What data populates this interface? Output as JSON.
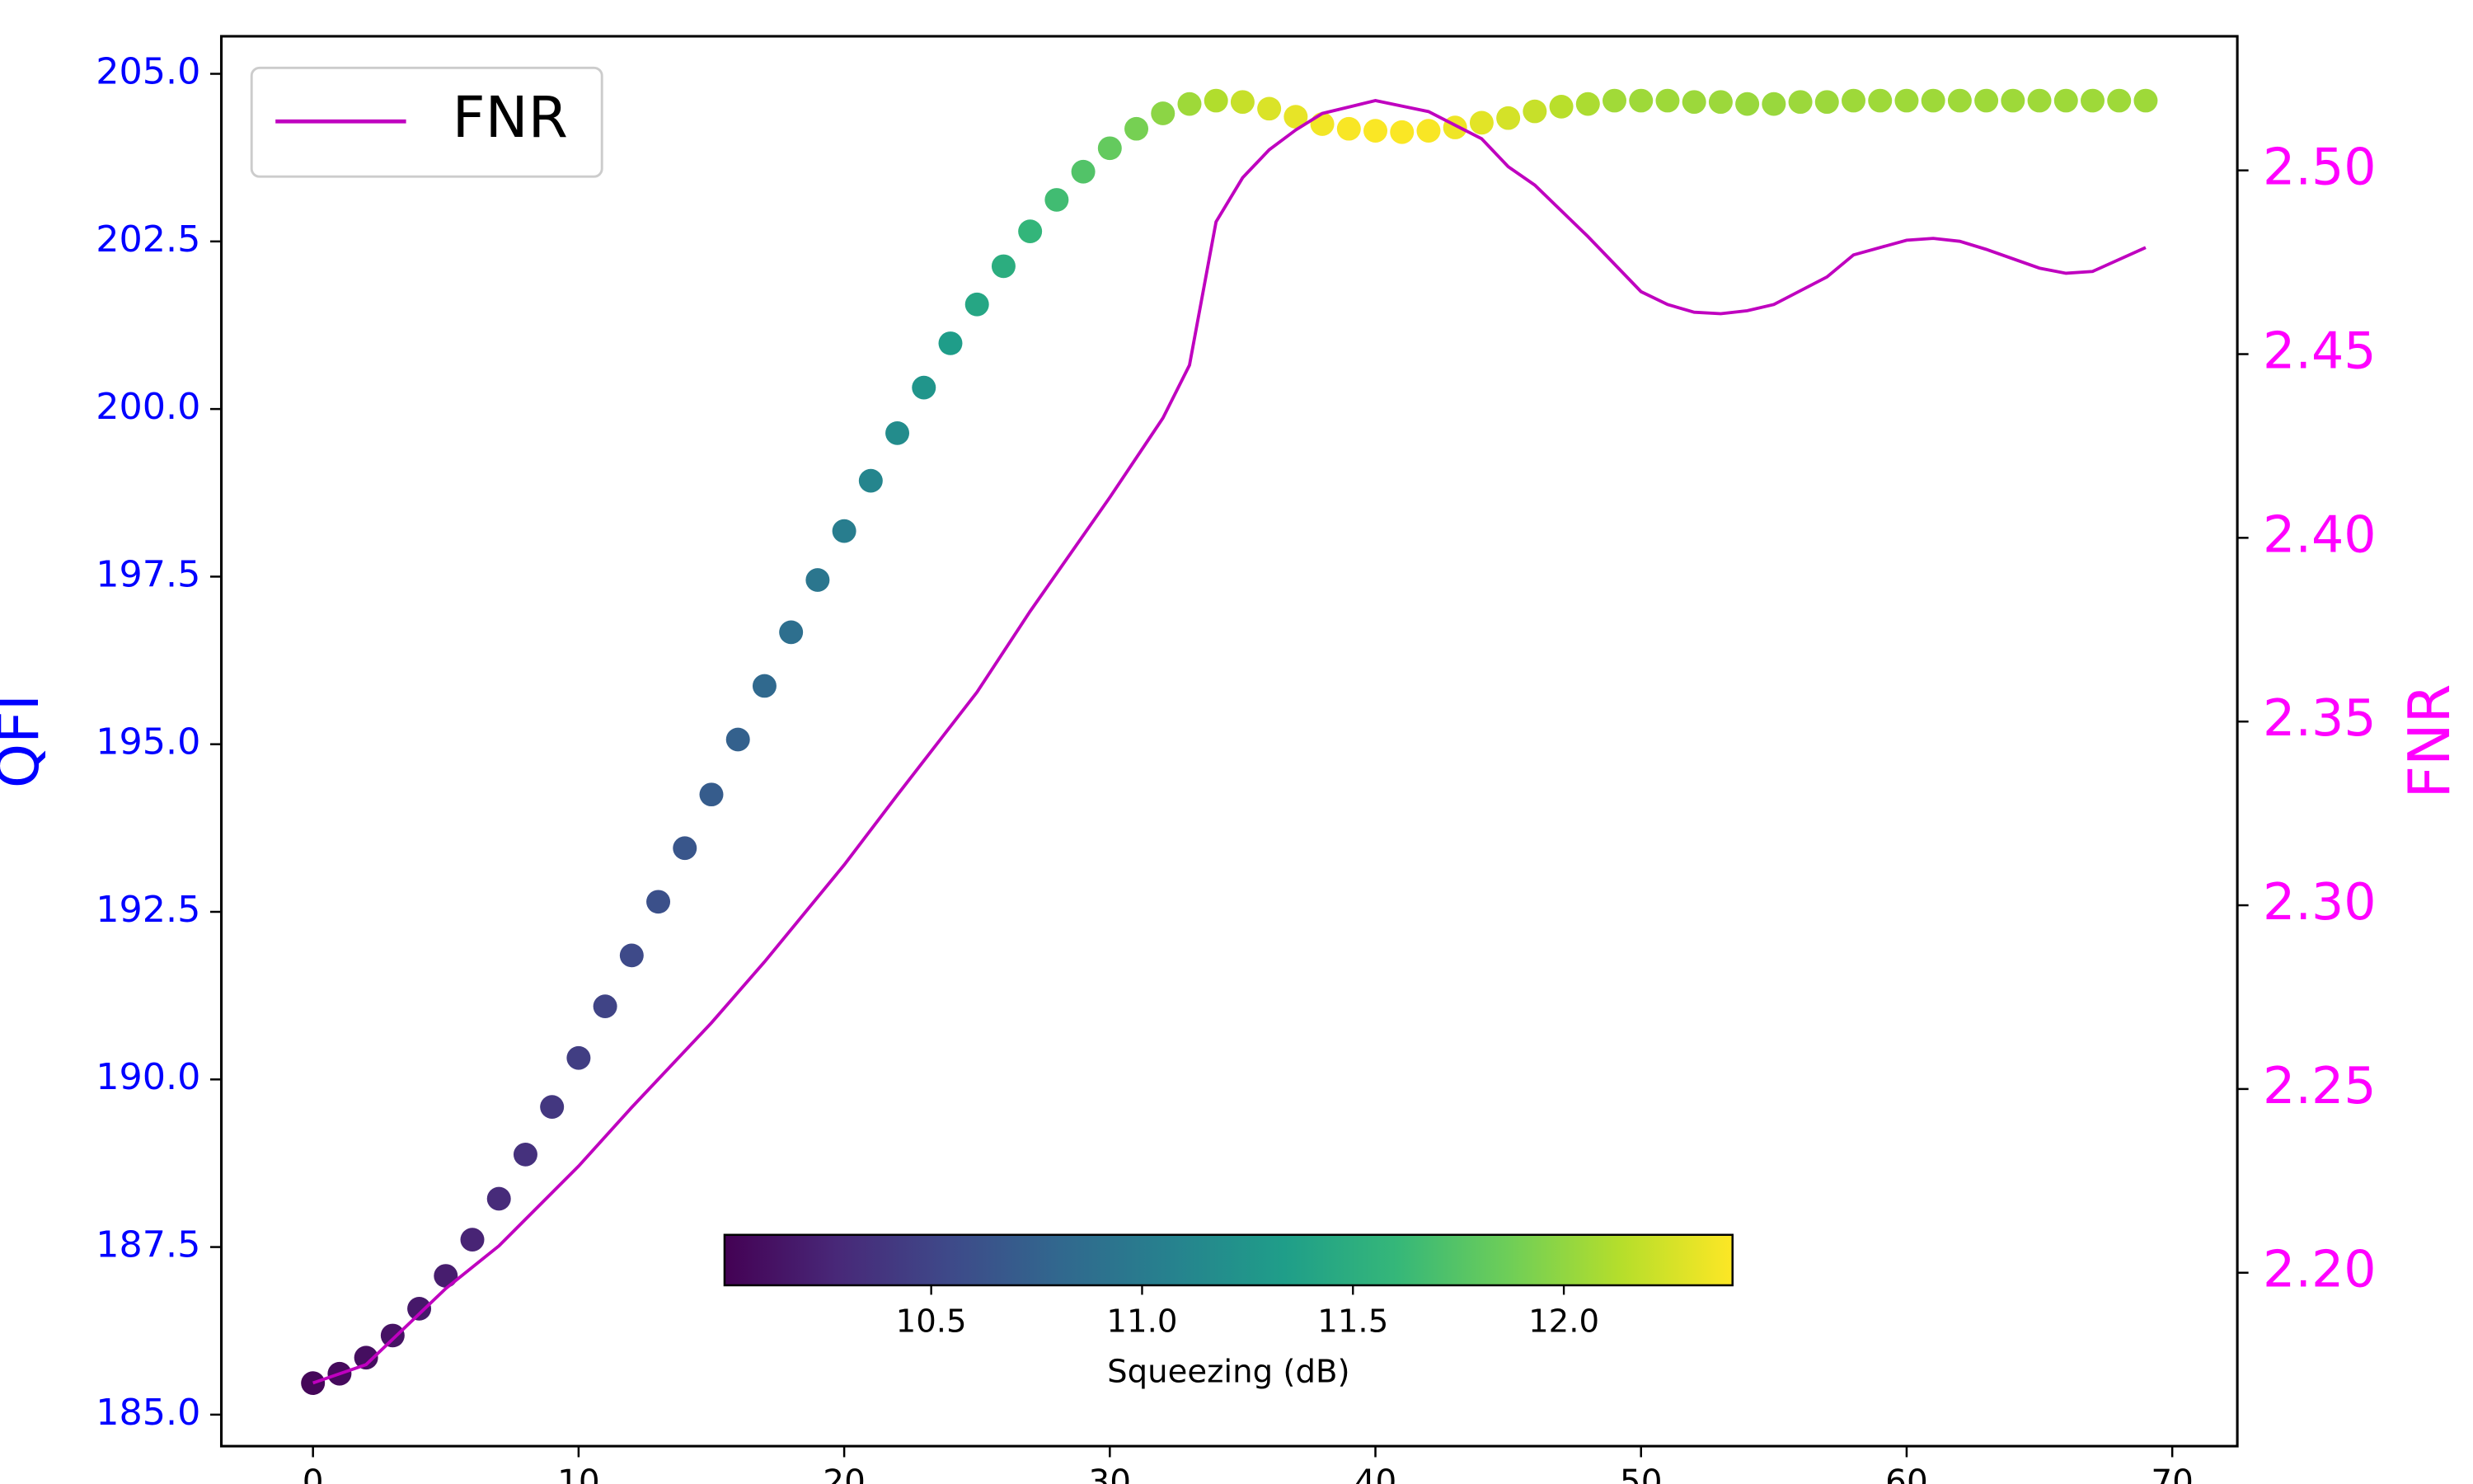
{
  "chart_data": {
    "type": "scatter",
    "xlim": [
      -3.45,
      72.45
    ],
    "xticks": [
      0,
      10,
      20,
      30,
      40,
      50,
      60,
      70
    ],
    "ylabel": "QFI",
    "y_color": "#0000ff",
    "ylim": [
      184.53,
      205.56
    ],
    "yticks": [
      {
        "value": 185,
        "label": "185.0"
      },
      {
        "value": 187.5,
        "label": "187.5"
      },
      {
        "value": 190,
        "label": "190.0"
      },
      {
        "value": 192.5,
        "label": "192.5"
      },
      {
        "value": 195,
        "label": "195.0"
      },
      {
        "value": 197.5,
        "label": "197.5"
      },
      {
        "value": 200,
        "label": "200.0"
      },
      {
        "value": 202.5,
        "label": "202.5"
      },
      {
        "value": 205,
        "label": "205.0"
      }
    ],
    "y2label": "FNR",
    "y2_color": "#ff00ff",
    "y2lim": [
      2.1528,
      2.5365
    ],
    "y2ticks": [
      {
        "value": 2.2,
        "label": "2.20"
      },
      {
        "value": 2.25,
        "label": "2.25"
      },
      {
        "value": 2.3,
        "label": "2.30"
      },
      {
        "value": 2.35,
        "label": "2.35"
      },
      {
        "value": 2.4,
        "label": "2.40"
      },
      {
        "value": 2.45,
        "label": "2.45"
      },
      {
        "value": 2.5,
        "label": "2.50"
      }
    ],
    "colorbar": {
      "label": "Squeezing (dB)",
      "colormap": "viridis",
      "clim": [
        10.01,
        12.4
      ],
      "ticks": [
        {
          "value": 10.5,
          "label": "10.5"
        },
        {
          "value": 11,
          "label": "11.0"
        },
        {
          "value": 11.5,
          "label": "11.5"
        },
        {
          "value": 12,
          "label": "12.0"
        }
      ]
    },
    "legend": "upper left",
    "series": [
      {
        "axis": "y",
        "x": [
          0,
          1,
          2,
          3,
          4,
          5,
          6,
          7,
          8,
          9,
          10,
          11,
          12,
          13,
          14,
          15,
          16,
          17,
          18,
          19,
          20,
          21,
          22,
          23,
          24,
          25,
          26,
          27,
          28,
          29,
          30,
          31,
          32,
          33,
          34,
          35,
          36,
          37,
          38,
          39,
          40,
          41,
          42,
          43,
          44,
          45,
          46,
          47,
          48,
          49,
          50,
          51,
          52,
          53,
          54,
          55,
          56,
          57,
          58,
          59,
          60,
          61,
          62,
          63,
          64,
          65,
          66,
          67,
          68,
          69
        ],
        "values": [
          185.47,
          185.61,
          185.85,
          186.18,
          186.58,
          187.07,
          187.61,
          188.22,
          188.88,
          189.59,
          190.32,
          191.09,
          191.85,
          192.65,
          193.45,
          194.25,
          195.07,
          195.87,
          196.67,
          197.45,
          198.18,
          198.93,
          199.64,
          200.32,
          200.98,
          201.56,
          202.13,
          202.65,
          203.12,
          203.54,
          203.89,
          204.18,
          204.41,
          204.55,
          204.6,
          204.58,
          204.48,
          204.36,
          204.25,
          204.18,
          204.15,
          204.13,
          204.15,
          204.2,
          204.27,
          204.34,
          204.44,
          204.51,
          204.55,
          204.6,
          204.6,
          204.6,
          204.58,
          204.58,
          204.55,
          204.55,
          204.58,
          204.58,
          204.6,
          204.6,
          204.6,
          204.6,
          204.6,
          204.6,
          204.6,
          204.6,
          204.6,
          204.6,
          204.6,
          204.6
        ],
        "c": [
          10.05,
          10.07,
          10.1,
          10.13,
          10.17,
          10.2,
          10.25,
          10.3,
          10.35,
          10.4,
          10.45,
          10.5,
          10.55,
          10.6,
          10.65,
          10.7,
          10.75,
          10.82,
          10.88,
          10.95,
          11.02,
          11.1,
          11.17,
          11.25,
          11.33,
          11.42,
          11.5,
          11.58,
          11.66,
          11.74,
          11.82,
          11.9,
          11.98,
          12.05,
          12.12,
          12.2,
          12.27,
          12.32,
          12.36,
          12.38,
          12.39,
          12.39,
          12.38,
          12.35,
          12.3,
          12.25,
          12.2,
          12.15,
          12.1,
          12.06,
          12.05,
          12.05,
          12.04,
          12.04,
          12.03,
          12.03,
          12.04,
          12.04,
          12.05,
          12.05,
          12.05,
          12.05,
          12.05,
          12.05,
          12.05,
          12.05,
          12.05,
          12.05,
          12.05,
          12.05
        ]
      },
      {
        "name": "FNR",
        "color": "#bf00bf",
        "axis": "y2",
        "x": [
          0,
          2,
          5,
          7,
          10,
          12,
          15,
          17,
          20,
          22,
          25,
          27,
          30,
          32,
          33,
          34,
          35,
          36,
          37,
          38,
          40,
          42,
          44,
          45,
          46,
          48,
          50,
          51,
          52,
          53,
          54,
          55,
          57,
          58,
          60,
          61,
          62,
          63,
          65,
          66,
          67,
          69
        ],
        "values": [
          2.17,
          2.175,
          2.1957,
          2.2073,
          2.229,
          2.245,
          2.268,
          2.2846,
          2.311,
          2.33,
          2.358,
          2.38,
          2.411,
          2.4326,
          2.447,
          2.486,
          2.498,
          2.5056,
          2.511,
          2.5155,
          2.519,
          2.516,
          2.5086,
          2.501,
          2.496,
          2.482,
          2.467,
          2.4635,
          2.4614,
          2.461,
          2.4618,
          2.4635,
          2.471,
          2.477,
          2.481,
          2.4815,
          2.4807,
          2.4785,
          2.4734,
          2.472,
          2.4725,
          2.479
        ]
      }
    ]
  }
}
